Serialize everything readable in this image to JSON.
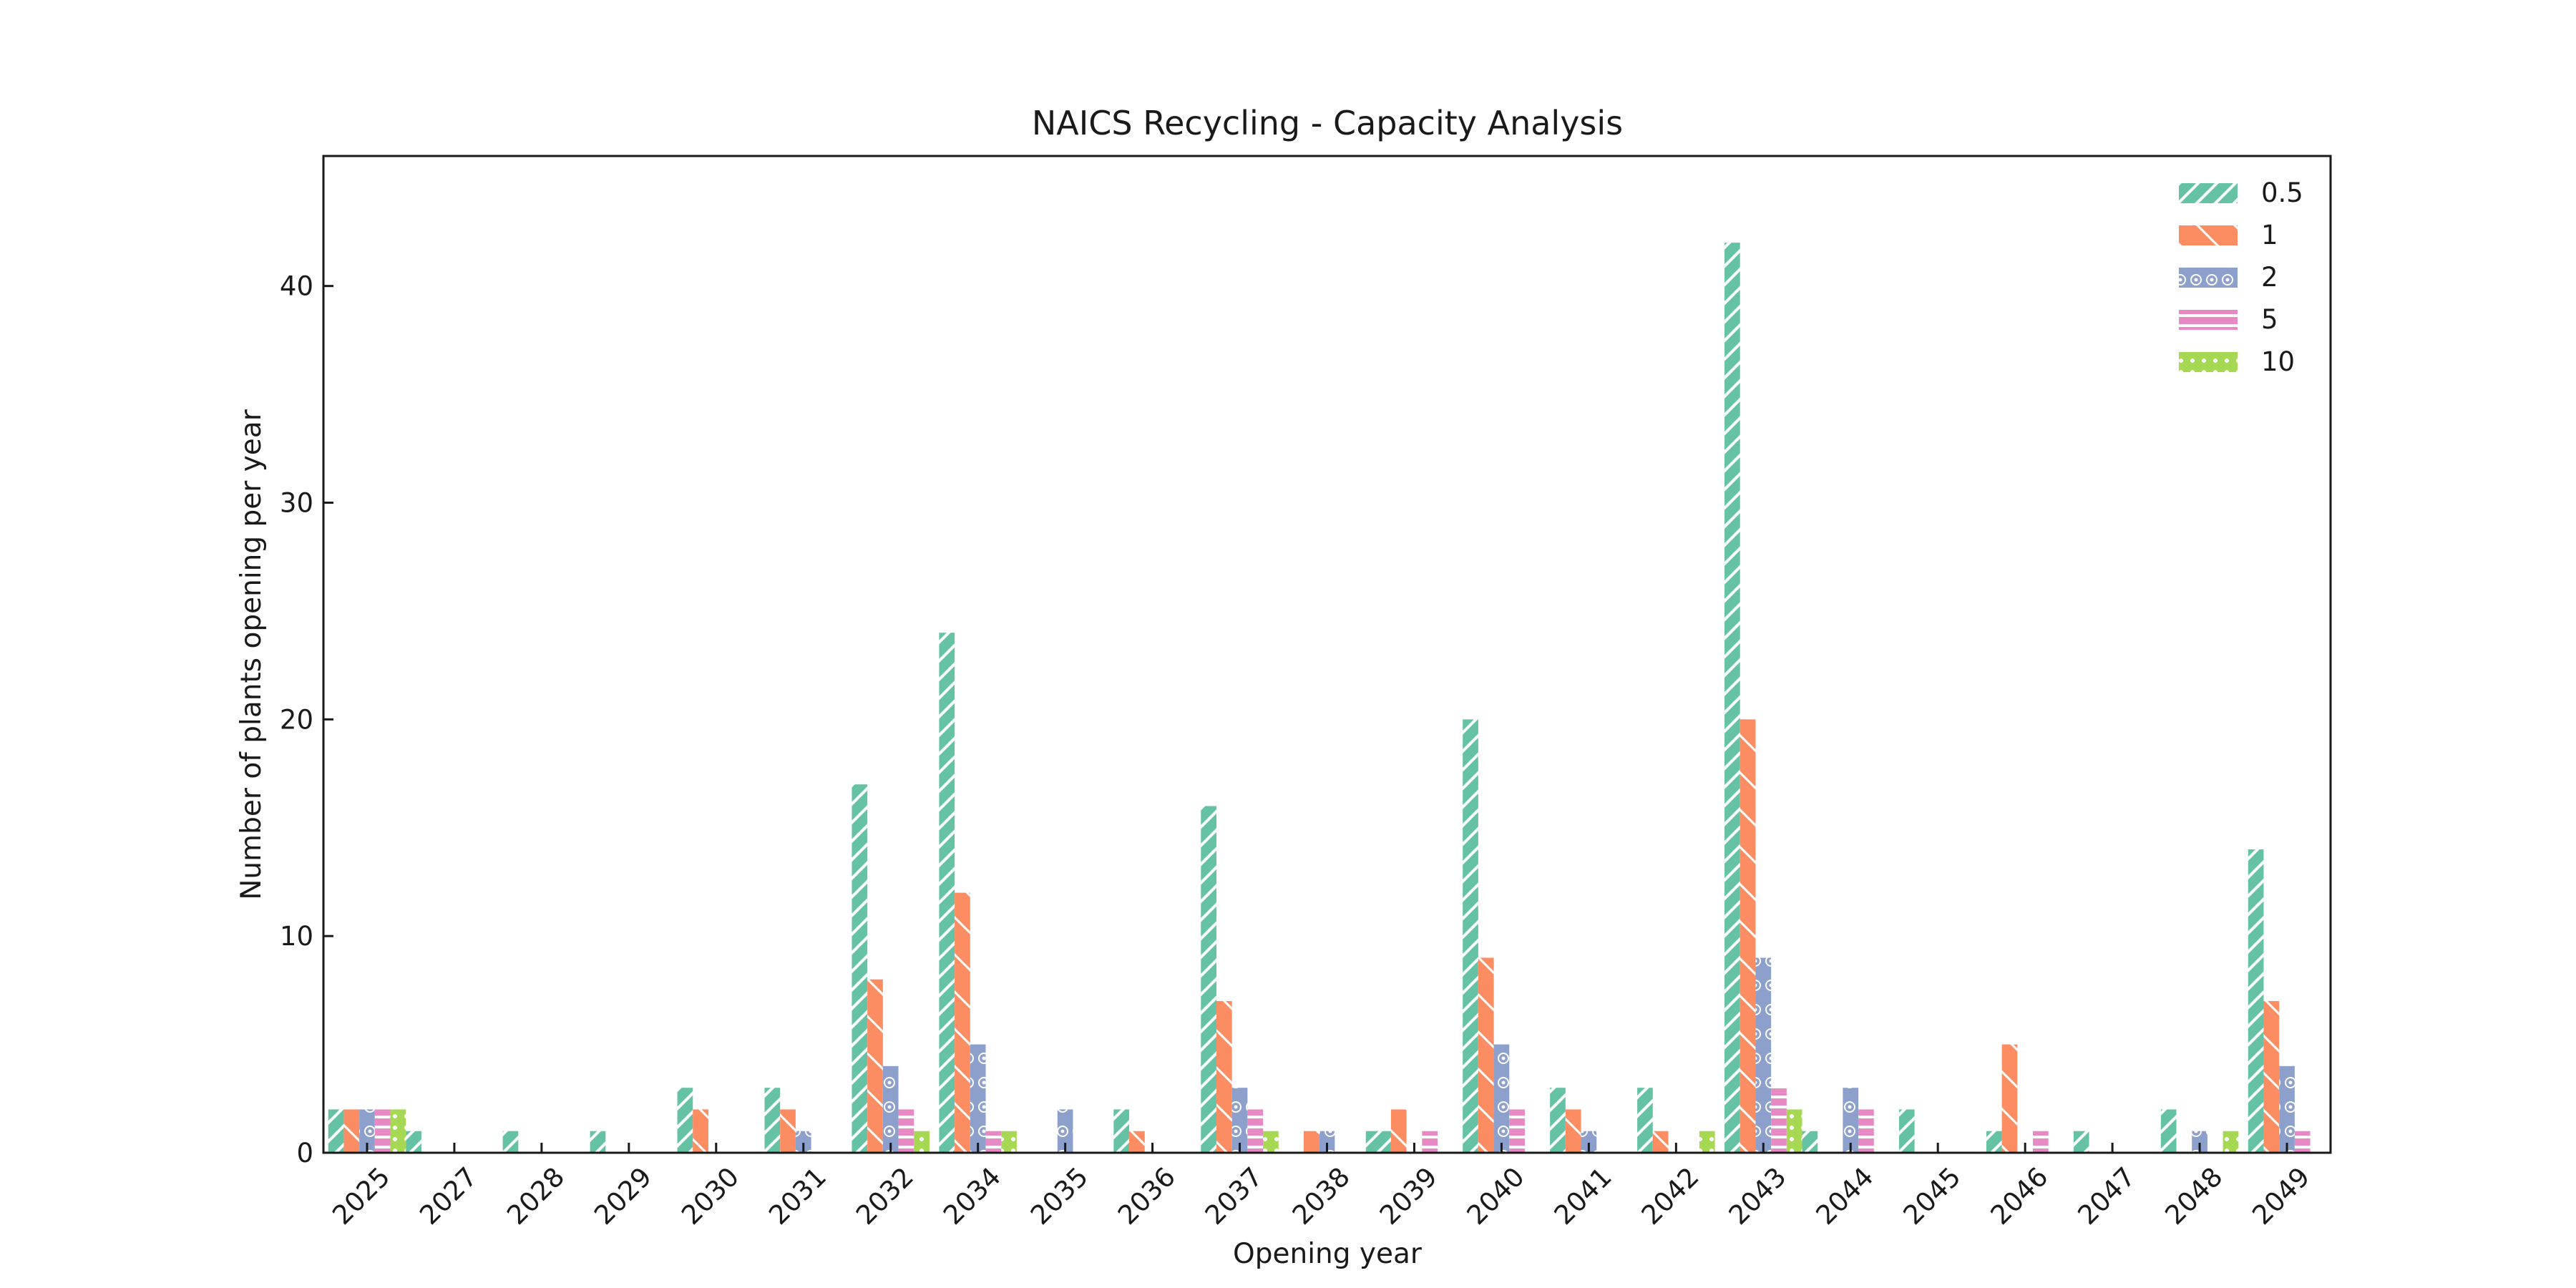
{
  "chart_data": {
    "type": "bar",
    "title": "NAICS Recycling - Capacity Analysis",
    "xlabel": "Opening year",
    "ylabel": "Number of plants opening per year",
    "ylim": [
      0,
      46
    ],
    "yticks": [
      0,
      10,
      20,
      30,
      40
    ],
    "grid": false,
    "legend": "top-right",
    "categories": [
      "2025",
      "2027",
      "2028",
      "2029",
      "2030",
      "2031",
      "2032",
      "2034",
      "2035",
      "2036",
      "2037",
      "2038",
      "2039",
      "2040",
      "2041",
      "2042",
      "2043",
      "2044",
      "2045",
      "2046",
      "2047",
      "2048",
      "2049"
    ],
    "series": [
      {
        "name": "0.5",
        "color": "#66c2a5",
        "pattern": "hatch-diag",
        "values": [
          2,
          0,
          1,
          1,
          3,
          3,
          17,
          24,
          0,
          2,
          16,
          0,
          1,
          20,
          3,
          3,
          42,
          0,
          2,
          1,
          1,
          2,
          14
        ]
      },
      {
        "name": "1",
        "color": "#fc8d62",
        "pattern": "hatch-backslash",
        "values": [
          2,
          0,
          0,
          0,
          2,
          2,
          8,
          12,
          0,
          1,
          7,
          1,
          2,
          9,
          2,
          1,
          20,
          0,
          0,
          5,
          0,
          0,
          7
        ]
      },
      {
        "name": "2",
        "color": "#8da0cb",
        "pattern": "circles",
        "values": [
          2,
          0,
          0,
          0,
          0,
          1,
          4,
          5,
          2,
          0,
          3,
          1,
          0,
          5,
          1,
          0,
          9,
          3,
          0,
          0,
          0,
          1,
          4
        ]
      },
      {
        "name": "5",
        "color": "#e78ac3",
        "pattern": "hlines",
        "values": [
          2,
          0,
          0,
          0,
          0,
          0,
          2,
          1,
          0,
          0,
          2,
          0,
          1,
          2,
          0,
          0,
          3,
          2,
          0,
          1,
          0,
          0,
          1
        ]
      },
      {
        "name": "10",
        "color": "#a6d854",
        "pattern": "dots",
        "values": [
          2,
          0,
          0,
          0,
          0,
          0,
          1,
          1,
          0,
          0,
          1,
          0,
          0,
          0,
          0,
          1,
          2,
          0,
          0,
          0,
          0,
          1,
          0
        ]
      }
    ],
    "trailing_bars": [
      {
        "after": "2025",
        "series": "0.5",
        "value": 1
      },
      {
        "after": "2038",
        "series": "0.5",
        "value": 1
      },
      {
        "after": "2043",
        "series": "0.5",
        "value": 1
      }
    ]
  }
}
